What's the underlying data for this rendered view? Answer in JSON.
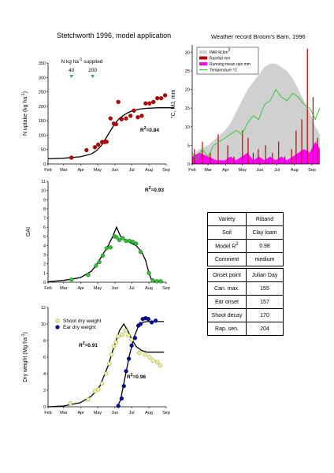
{
  "title": "Stetchworth 1996, model application",
  "weather_title": "Weather record Broom's Barn, 1996",
  "months": [
    "Feb",
    "Mar",
    "Apr",
    "May",
    "Jun",
    "Jul",
    "Aug",
    "Sep"
  ],
  "variety_table": {
    "rows": [
      {
        "label": "Variety",
        "value": "Riband"
      },
      {
        "label": "Soil",
        "value": "Clay loam"
      },
      {
        "label": "Model R",
        "label_sup": "2",
        "value": "0.98"
      },
      {
        "label": "Comment",
        "value": "medium"
      }
    ]
  },
  "onset_table": {
    "header": {
      "label": "Onset point",
      "value": "Julian Day"
    },
    "rows": [
      {
        "label": "Can. max.",
        "value": "155"
      },
      {
        "label": "Ear onset",
        "value": "157"
      },
      {
        "label": "Shoot decay",
        "value": "170"
      },
      {
        "label": "Rap. sen.",
        "value": "204"
      }
    ]
  },
  "colors": {
    "observed_n": "#c00000",
    "observed_gai": "#2ec12e",
    "shoot": "#f2f29a",
    "ear": "#000f9f",
    "model": "#000000",
    "par": "#d0d0d0",
    "rainfall": "#c00000",
    "running_rain": "#ff00ff",
    "temperature": "#22cc22",
    "marker": "#1aa2a2"
  },
  "chart_data": [
    {
      "type": "scatter",
      "id": "n-uptake",
      "ylabel": "N uptake (kg ha",
      "ylabel_sup": "-1",
      "ylabel_end": ")",
      "ylim": [
        0,
        350
      ],
      "yticks": [
        0,
        50,
        100,
        150,
        200,
        250,
        300,
        350
      ],
      "annotation": {
        "text": "N kg ha",
        "sup": "-1",
        "text_end": " supplied"
      },
      "applications": [
        {
          "day": 74,
          "amount": "40"
        },
        {
          "day": 112,
          "amount": "200"
        }
      ],
      "r2": "0.84",
      "observed": [
        {
          "x": 74,
          "y": 22
        },
        {
          "x": 101,
          "y": 48
        },
        {
          "x": 116,
          "y": 58
        },
        {
          "x": 122,
          "y": 67
        },
        {
          "x": 129,
          "y": 76
        },
        {
          "x": 133,
          "y": 76
        },
        {
          "x": 137,
          "y": 77
        },
        {
          "x": 144,
          "y": 158
        },
        {
          "x": 150,
          "y": 140
        },
        {
          "x": 154,
          "y": 138
        },
        {
          "x": 158,
          "y": 215
        },
        {
          "x": 164,
          "y": 155
        },
        {
          "x": 172,
          "y": 158
        },
        {
          "x": 180,
          "y": 167
        },
        {
          "x": 186,
          "y": 185
        },
        {
          "x": 193,
          "y": 162
        },
        {
          "x": 200,
          "y": 167
        },
        {
          "x": 207,
          "y": 210
        },
        {
          "x": 214,
          "y": 210
        },
        {
          "x": 221,
          "y": 215
        },
        {
          "x": 228,
          "y": 228
        },
        {
          "x": 235,
          "y": 228
        },
        {
          "x": 242,
          "y": 238
        }
      ],
      "model": [
        {
          "x": 32,
          "y": 18
        },
        {
          "x": 60,
          "y": 20
        },
        {
          "x": 90,
          "y": 25
        },
        {
          "x": 110,
          "y": 35
        },
        {
          "x": 120,
          "y": 48
        },
        {
          "x": 128,
          "y": 65
        },
        {
          "x": 136,
          "y": 90
        },
        {
          "x": 144,
          "y": 115
        },
        {
          "x": 152,
          "y": 140
        },
        {
          "x": 160,
          "y": 158
        },
        {
          "x": 170,
          "y": 172
        },
        {
          "x": 180,
          "y": 182
        },
        {
          "x": 195,
          "y": 190
        },
        {
          "x": 210,
          "y": 193
        },
        {
          "x": 230,
          "y": 195
        },
        {
          "x": 258,
          "y": 195
        }
      ]
    },
    {
      "type": "scatter",
      "id": "gai",
      "ylabel": "GAI",
      "ylim": [
        0,
        11
      ],
      "yticks": [
        0,
        1,
        2,
        3,
        4,
        5,
        6,
        7,
        8,
        9,
        10,
        11
      ],
      "r2": "0.93",
      "observed": [
        {
          "x": 74,
          "y": 0.3
        },
        {
          "x": 104,
          "y": 0.8
        },
        {
          "x": 118,
          "y": 1.8
        },
        {
          "x": 124,
          "y": 2.2
        },
        {
          "x": 130,
          "y": 2.9
        },
        {
          "x": 137,
          "y": 3.7
        },
        {
          "x": 144,
          "y": 3.8
        },
        {
          "x": 151,
          "y": 5.0
        },
        {
          "x": 155,
          "y": 4.9
        },
        {
          "x": 160,
          "y": 4.6
        },
        {
          "x": 166,
          "y": 4.8
        },
        {
          "x": 172,
          "y": 4.5
        },
        {
          "x": 178,
          "y": 4.5
        },
        {
          "x": 184,
          "y": 4.4
        },
        {
          "x": 190,
          "y": 4.2
        },
        {
          "x": 198,
          "y": 3.3
        },
        {
          "x": 213,
          "y": 1.0
        },
        {
          "x": 220,
          "y": 0.2
        },
        {
          "x": 227,
          "y": 0.1
        },
        {
          "x": 234,
          "y": 0.1
        }
      ],
      "model": [
        {
          "x": 32,
          "y": 0.05
        },
        {
          "x": 60,
          "y": 0.2
        },
        {
          "x": 90,
          "y": 0.5
        },
        {
          "x": 110,
          "y": 1.2
        },
        {
          "x": 120,
          "y": 2.0
        },
        {
          "x": 130,
          "y": 3.0
        },
        {
          "x": 140,
          "y": 4.0
        },
        {
          "x": 148,
          "y": 5.0
        },
        {
          "x": 155,
          "y": 6.0
        },
        {
          "x": 162,
          "y": 5.0
        },
        {
          "x": 170,
          "y": 4.6
        },
        {
          "x": 180,
          "y": 4.3
        },
        {
          "x": 190,
          "y": 4.0
        },
        {
          "x": 200,
          "y": 3.3
        },
        {
          "x": 207,
          "y": 2.4
        },
        {
          "x": 213,
          "y": 1.0
        },
        {
          "x": 218,
          "y": 0.2
        },
        {
          "x": 224,
          "y": 0.05
        },
        {
          "x": 238,
          "y": 0.0
        }
      ]
    },
    {
      "type": "scatter",
      "id": "dry-weight",
      "ylabel": "Dry weight (Mg ha",
      "ylabel_sup": "-1",
      "ylabel_end": ")",
      "ylim": [
        0,
        12
      ],
      "yticks": [
        0,
        2,
        4,
        6,
        8,
        10,
        12
      ],
      "legend": [
        "Shoot dry weight",
        "Ear dry weight"
      ],
      "r2_shoot": "0.91",
      "r2_ear": "0.98",
      "shoot_observed": [
        {
          "x": 72,
          "y": 0.4
        },
        {
          "x": 104,
          "y": 0.9
        },
        {
          "x": 116,
          "y": 1.9
        },
        {
          "x": 122,
          "y": 2.1
        },
        {
          "x": 129,
          "y": 2.8
        },
        {
          "x": 136,
          "y": 4.0
        },
        {
          "x": 142,
          "y": 5.2
        },
        {
          "x": 146,
          "y": 6.3
        },
        {
          "x": 150,
          "y": 7.3
        },
        {
          "x": 154,
          "y": 7.8
        },
        {
          "x": 158,
          "y": 8.5
        },
        {
          "x": 165,
          "y": 8.7
        },
        {
          "x": 171,
          "y": 9.2
        },
        {
          "x": 176,
          "y": 8.6
        },
        {
          "x": 182,
          "y": 8.1
        },
        {
          "x": 196,
          "y": 6.5
        },
        {
          "x": 206,
          "y": 6.3
        },
        {
          "x": 214,
          "y": 6.0
        },
        {
          "x": 220,
          "y": 5.6
        },
        {
          "x": 228,
          "y": 5.4
        },
        {
          "x": 233,
          "y": 5.0
        }
      ],
      "ear_observed": [
        {
          "x": 158,
          "y": 0.1
        },
        {
          "x": 164,
          "y": 1.0
        },
        {
          "x": 168,
          "y": 2.5
        },
        {
          "x": 172,
          "y": 4.3
        },
        {
          "x": 177,
          "y": 5.8
        },
        {
          "x": 182,
          "y": 7.4
        },
        {
          "x": 188,
          "y": 8.3
        },
        {
          "x": 194,
          "y": 9.8
        },
        {
          "x": 198,
          "y": 10.0
        },
        {
          "x": 202,
          "y": 10.6
        },
        {
          "x": 207,
          "y": 10.7
        },
        {
          "x": 212,
          "y": 10.6
        },
        {
          "x": 218,
          "y": 10.2
        },
        {
          "x": 225,
          "y": 10.4
        }
      ],
      "shoot_model": [
        {
          "x": 32,
          "y": 0.0
        },
        {
          "x": 60,
          "y": 0.1
        },
        {
          "x": 90,
          "y": 0.5
        },
        {
          "x": 110,
          "y": 1.3
        },
        {
          "x": 125,
          "y": 2.5
        },
        {
          "x": 140,
          "y": 5.0
        },
        {
          "x": 150,
          "y": 7.2
        },
        {
          "x": 160,
          "y": 9.2
        },
        {
          "x": 168,
          "y": 10.0
        },
        {
          "x": 175,
          "y": 9.2
        },
        {
          "x": 182,
          "y": 8.2
        },
        {
          "x": 190,
          "y": 7.3
        },
        {
          "x": 200,
          "y": 6.8
        },
        {
          "x": 210,
          "y": 6.6
        },
        {
          "x": 240,
          "y": 6.6
        }
      ],
      "ear_model": [
        {
          "x": 156,
          "y": 0.0
        },
        {
          "x": 162,
          "y": 0.8
        },
        {
          "x": 170,
          "y": 3.5
        },
        {
          "x": 178,
          "y": 6.2
        },
        {
          "x": 186,
          "y": 8.4
        },
        {
          "x": 194,
          "y": 9.7
        },
        {
          "x": 202,
          "y": 10.2
        },
        {
          "x": 210,
          "y": 10.3
        },
        {
          "x": 240,
          "y": 10.3
        }
      ]
    },
    {
      "type": "area",
      "id": "weather",
      "ylabel": "°C, MJ, mm",
      "ylim": [
        0,
        32
      ],
      "yticks": [
        0,
        5,
        10,
        15,
        20,
        25,
        30
      ],
      "legend": [
        "PAR MJ/m",
        "Rainfall mm",
        "Running mean rain mm",
        "Temperature °C"
      ],
      "legend_sup": "2",
      "par": [
        {
          "x": 32,
          "y": 2
        },
        {
          "x": 45,
          "y": 4
        },
        {
          "x": 60,
          "y": 5
        },
        {
          "x": 75,
          "y": 7
        },
        {
          "x": 90,
          "y": 9
        },
        {
          "x": 100,
          "y": 11
        },
        {
          "x": 110,
          "y": 14
        },
        {
          "x": 120,
          "y": 17
        },
        {
          "x": 130,
          "y": 20
        },
        {
          "x": 140,
          "y": 22
        },
        {
          "x": 150,
          "y": 24
        },
        {
          "x": 160,
          "y": 26
        },
        {
          "x": 170,
          "y": 27
        },
        {
          "x": 180,
          "y": 27
        },
        {
          "x": 190,
          "y": 26
        },
        {
          "x": 200,
          "y": 25
        },
        {
          "x": 210,
          "y": 23
        },
        {
          "x": 220,
          "y": 20
        },
        {
          "x": 230,
          "y": 17
        },
        {
          "x": 240,
          "y": 14
        },
        {
          "x": 250,
          "y": 10
        },
        {
          "x": 258,
          "y": 8
        }
      ],
      "temperature": [
        {
          "x": 32,
          "y": 3
        },
        {
          "x": 40,
          "y": 1
        },
        {
          "x": 50,
          "y": 4
        },
        {
          "x": 60,
          "y": 2
        },
        {
          "x": 70,
          "y": 5
        },
        {
          "x": 80,
          "y": 6
        },
        {
          "x": 90,
          "y": 7
        },
        {
          "x": 100,
          "y": 8
        },
        {
          "x": 110,
          "y": 9
        },
        {
          "x": 120,
          "y": 8
        },
        {
          "x": 130,
          "y": 11
        },
        {
          "x": 140,
          "y": 13
        },
        {
          "x": 150,
          "y": 12
        },
        {
          "x": 160,
          "y": 16
        },
        {
          "x": 170,
          "y": 17
        },
        {
          "x": 180,
          "y": 20
        },
        {
          "x": 190,
          "y": 18
        },
        {
          "x": 200,
          "y": 17
        },
        {
          "x": 210,
          "y": 19
        },
        {
          "x": 220,
          "y": 18
        },
        {
          "x": 230,
          "y": 16
        },
        {
          "x": 240,
          "y": 15
        },
        {
          "x": 250,
          "y": 12
        },
        {
          "x": 258,
          "y": 15
        }
      ],
      "running_rain": [
        {
          "x": 32,
          "y": 2
        },
        {
          "x": 45,
          "y": 3
        },
        {
          "x": 60,
          "y": 2
        },
        {
          "x": 75,
          "y": 1
        },
        {
          "x": 90,
          "y": 1
        },
        {
          "x": 100,
          "y": 2
        },
        {
          "x": 110,
          "y": 1
        },
        {
          "x": 120,
          "y": 2
        },
        {
          "x": 130,
          "y": 3
        },
        {
          "x": 140,
          "y": 1
        },
        {
          "x": 150,
          "y": 2
        },
        {
          "x": 160,
          "y": 1
        },
        {
          "x": 170,
          "y": 2
        },
        {
          "x": 180,
          "y": 1
        },
        {
          "x": 190,
          "y": 2
        },
        {
          "x": 200,
          "y": 1
        },
        {
          "x": 210,
          "y": 2
        },
        {
          "x": 220,
          "y": 3
        },
        {
          "x": 230,
          "y": 4
        },
        {
          "x": 240,
          "y": 3
        },
        {
          "x": 250,
          "y": 6
        },
        {
          "x": 258,
          "y": 4
        }
      ],
      "rainfall": [
        {
          "x": 36,
          "y": 4
        },
        {
          "x": 50,
          "y": 6
        },
        {
          "x": 64,
          "y": 3
        },
        {
          "x": 78,
          "y": 8
        },
        {
          "x": 95,
          "y": 5
        },
        {
          "x": 106,
          "y": 2
        },
        {
          "x": 121,
          "y": 9
        },
        {
          "x": 131,
          "y": 7
        },
        {
          "x": 140,
          "y": 3
        },
        {
          "x": 149,
          "y": 4
        },
        {
          "x": 162,
          "y": 5
        },
        {
          "x": 174,
          "y": 3
        },
        {
          "x": 185,
          "y": 6
        },
        {
          "x": 196,
          "y": 2
        },
        {
          "x": 208,
          "y": 4
        },
        {
          "x": 216,
          "y": 9
        },
        {
          "x": 226,
          "y": 12
        },
        {
          "x": 236,
          "y": 31
        },
        {
          "x": 246,
          "y": 18
        },
        {
          "x": 254,
          "y": 7
        }
      ]
    }
  ]
}
